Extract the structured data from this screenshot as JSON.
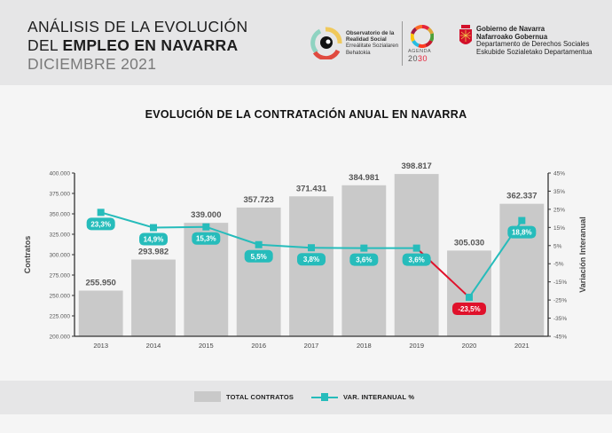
{
  "header": {
    "title_line1": "ANÁLISIS DE LA EVOLUCIÓN",
    "title_line2_prefix": "DEL ",
    "title_line2_bold": "EMPLEO EN NAVARRA",
    "subtitle": "DICIEMBRE 2021"
  },
  "logos": {
    "observatorio": {
      "line1": "Observatorio de la",
      "line2": "Realidad Social",
      "line3": "Erreálitate Sozialaren",
      "line4": "Behatokia"
    },
    "agenda": {
      "label": "AGENDA",
      "year_prefix": "20",
      "year_suffix": "30"
    },
    "gobierno": {
      "line1": "Gobierno de Navarra",
      "line2": "Nafarroako Gobernua",
      "line3": "Departamento de Derechos Sociales",
      "line4": "Eskubide Sozialetako Departamentua"
    }
  },
  "colors": {
    "bar": "#c9c9c9",
    "line": "#26bcbb",
    "negative": "#e0112b",
    "axis": "#333333"
  },
  "chart_data": {
    "type": "bar",
    "title": "EVOLUCIÓN DE LA CONTRATACIÓN ANUAL EN NAVARRA",
    "xlabel": "",
    "ylabel": "Contratos",
    "y2label": "Variación Interanual",
    "categories": [
      "2013",
      "2014",
      "2015",
      "2016",
      "2017",
      "2018",
      "2019",
      "2020",
      "2021"
    ],
    "ylim": [
      200000,
      400000
    ],
    "y_ticks": [
      "400.000",
      "375.000",
      "350.000",
      "325.000",
      "300.000",
      "275.000",
      "250.000",
      "225.000",
      "200.000"
    ],
    "y2lim": [
      -45,
      45
    ],
    "y2_ticks": [
      "45%",
      "35%",
      "25%",
      "15%",
      "5%",
      "-5%",
      "-15%",
      "-25%",
      "-35%",
      "-45%"
    ],
    "series": [
      {
        "name": "TOTAL CONTRATOS",
        "type": "bar",
        "axis": "left",
        "values": [
          255950,
          293982,
          339000,
          357723,
          371431,
          384981,
          398817,
          305030,
          362337
        ],
        "labels": [
          "255.950",
          "293.982",
          "339.000",
          "357.723",
          "371.431",
          "384.981",
          "398.817",
          "305.030",
          "362.337"
        ]
      },
      {
        "name": "VAR. INTERANUAL %",
        "type": "line",
        "axis": "right",
        "values": [
          23.3,
          14.9,
          15.3,
          5.5,
          3.8,
          3.6,
          3.6,
          -23.5,
          18.8
        ],
        "labels": [
          "23,3%",
          "14,9%",
          "15,3%",
          "5,5%",
          "3,8%",
          "3,6%",
          "3,6%",
          "-23,5%",
          "18,8%"
        ]
      }
    ],
    "legend": "bottom",
    "grid": false
  },
  "legend": {
    "bars_label": "TOTAL CONTRATOS",
    "line_label": "VAR. INTERANUAL %"
  }
}
